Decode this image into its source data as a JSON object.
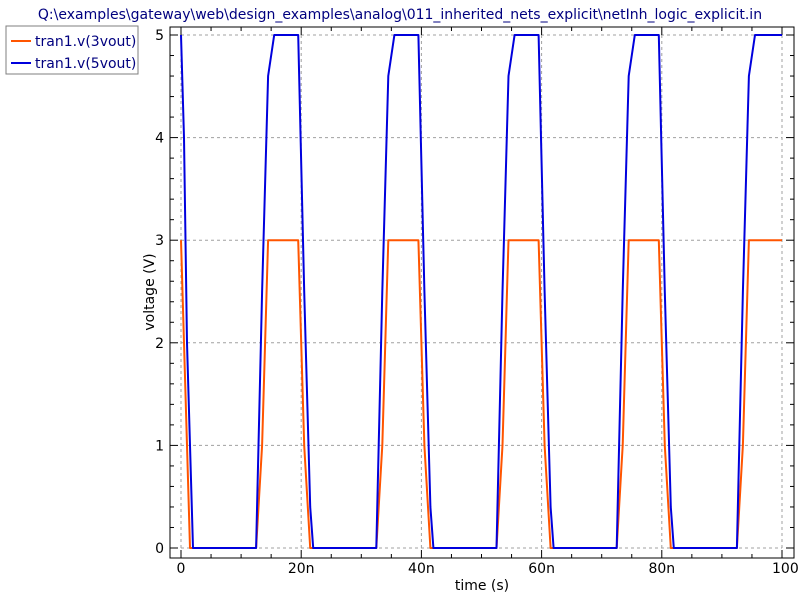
{
  "chart_data": {
    "type": "line",
    "title": "Q:\\examples\\gateway\\web\\design_examples\\analog\\011_inherited_nets_explicit\\netInh_logic_explicit.in",
    "xlabel": "time (s)",
    "ylabel": "voltage (V)",
    "xlim": [
      0,
      100
    ],
    "ylim": [
      0,
      5
    ],
    "x_ticks": [
      0,
      20,
      40,
      60,
      80,
      100
    ],
    "x_tick_labels": [
      "0",
      "20n",
      "40n",
      "60n",
      "80n",
      "100n"
    ],
    "y_ticks": [
      0,
      1,
      2,
      3,
      4,
      5
    ],
    "y_tick_labels": [
      "0",
      "1",
      "2",
      "3",
      "4",
      "5"
    ],
    "grid": true,
    "legend_position": "top-left",
    "series": [
      {
        "name": "tran1.v(3vout)",
        "color": "#ff5500",
        "x": [
          0,
          0.5,
          1.5,
          12.5,
          13.5,
          14.5,
          19.5,
          20.5,
          21.5,
          32.5,
          33.5,
          34.5,
          39.5,
          40.5,
          41.5,
          52.5,
          53.5,
          54.5,
          59.5,
          60.5,
          61.5,
          72.5,
          73.5,
          74.5,
          79.5,
          80.5,
          81.5,
          92.5,
          93.5,
          94.5,
          100
        ],
        "values": [
          3.0,
          2.0,
          0.0,
          0.0,
          1.0,
          3.0,
          3.0,
          1.0,
          0.0,
          0.0,
          1.0,
          3.0,
          3.0,
          1.0,
          0.0,
          0.0,
          1.0,
          3.0,
          3.0,
          1.0,
          0.0,
          0.0,
          1.0,
          3.0,
          3.0,
          1.0,
          0.0,
          0.0,
          1.0,
          3.0,
          3.0
        ]
      },
      {
        "name": "tran1.v(5vout)",
        "color": "#0000dd",
        "x": [
          0,
          0.5,
          1.0,
          2.0,
          12.5,
          13.5,
          14.5,
          15.5,
          19.5,
          20.5,
          21.5,
          22.0,
          32.5,
          33.5,
          34.5,
          35.5,
          39.5,
          40.5,
          41.5,
          42.0,
          52.5,
          53.5,
          54.5,
          55.5,
          59.5,
          60.5,
          61.5,
          62.0,
          72.5,
          73.5,
          74.5,
          75.5,
          79.5,
          80.5,
          81.5,
          82.0,
          92.5,
          93.5,
          94.5,
          95.5,
          100
        ],
        "values": [
          5.0,
          4.0,
          2.0,
          0.0,
          0.0,
          2.5,
          4.6,
          5.0,
          5.0,
          2.5,
          0.4,
          0.0,
          0.0,
          2.5,
          4.6,
          5.0,
          5.0,
          2.5,
          0.4,
          0.0,
          0.0,
          2.5,
          4.6,
          5.0,
          5.0,
          2.5,
          0.4,
          0.0,
          0.0,
          2.5,
          4.6,
          5.0,
          5.0,
          2.5,
          0.4,
          0.0,
          0.0,
          2.5,
          4.6,
          5.0,
          5.0
        ]
      }
    ]
  }
}
